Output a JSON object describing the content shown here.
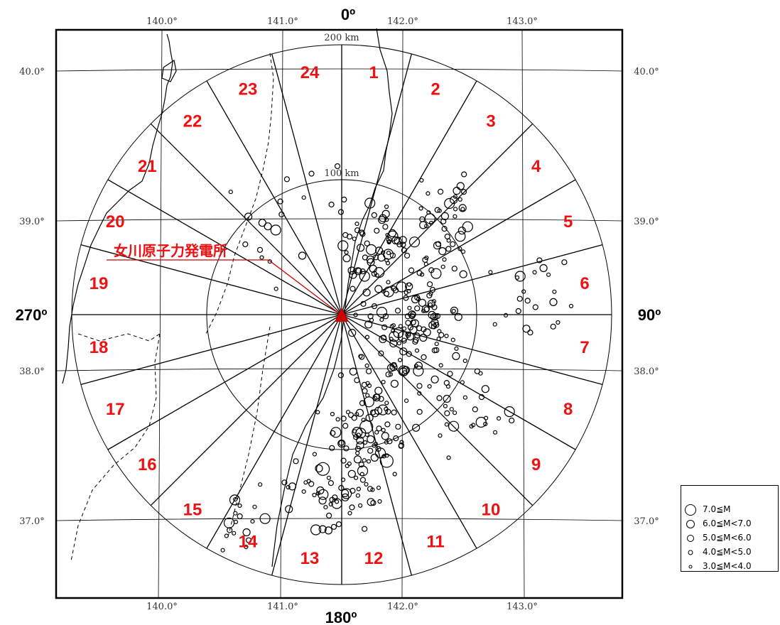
{
  "map": {
    "longitude_labels": [
      "140.0°",
      "141.0°",
      "142.0°",
      "143.0°"
    ],
    "latitude_labels": [
      "40.0°",
      "39.0°",
      "38.0°",
      "37.0°"
    ],
    "ring_labels": [
      "200 km",
      "100 km"
    ],
    "azimuth_labels": {
      "north": "0º",
      "east": "90º",
      "south": "180º",
      "west": "270º"
    },
    "facility_label": "女川原子力発電所",
    "sector_labels": [
      "1",
      "2",
      "3",
      "4",
      "5",
      "6",
      "7",
      "8",
      "9",
      "10",
      "11",
      "12",
      "13",
      "14",
      "15",
      "16",
      "17",
      "18",
      "19",
      "20",
      "21",
      "22",
      "23",
      "24"
    ],
    "colors": {
      "sector_label": "#ee1111",
      "facility_marker": "#cc0000",
      "frame": "#000000"
    }
  },
  "legend": {
    "items": [
      {
        "label": "7.0≦M",
        "symbol": "circle-xl"
      },
      {
        "label": "6.0≦M<7.0",
        "symbol": "circle-l"
      },
      {
        "label": "5.0≦M<6.0",
        "symbol": "circle-m"
      },
      {
        "label": "4.0≦M<5.0",
        "symbol": "circle-s"
      },
      {
        "label": "3.0≦M<4.0",
        "symbol": "circle-xs"
      }
    ]
  }
}
